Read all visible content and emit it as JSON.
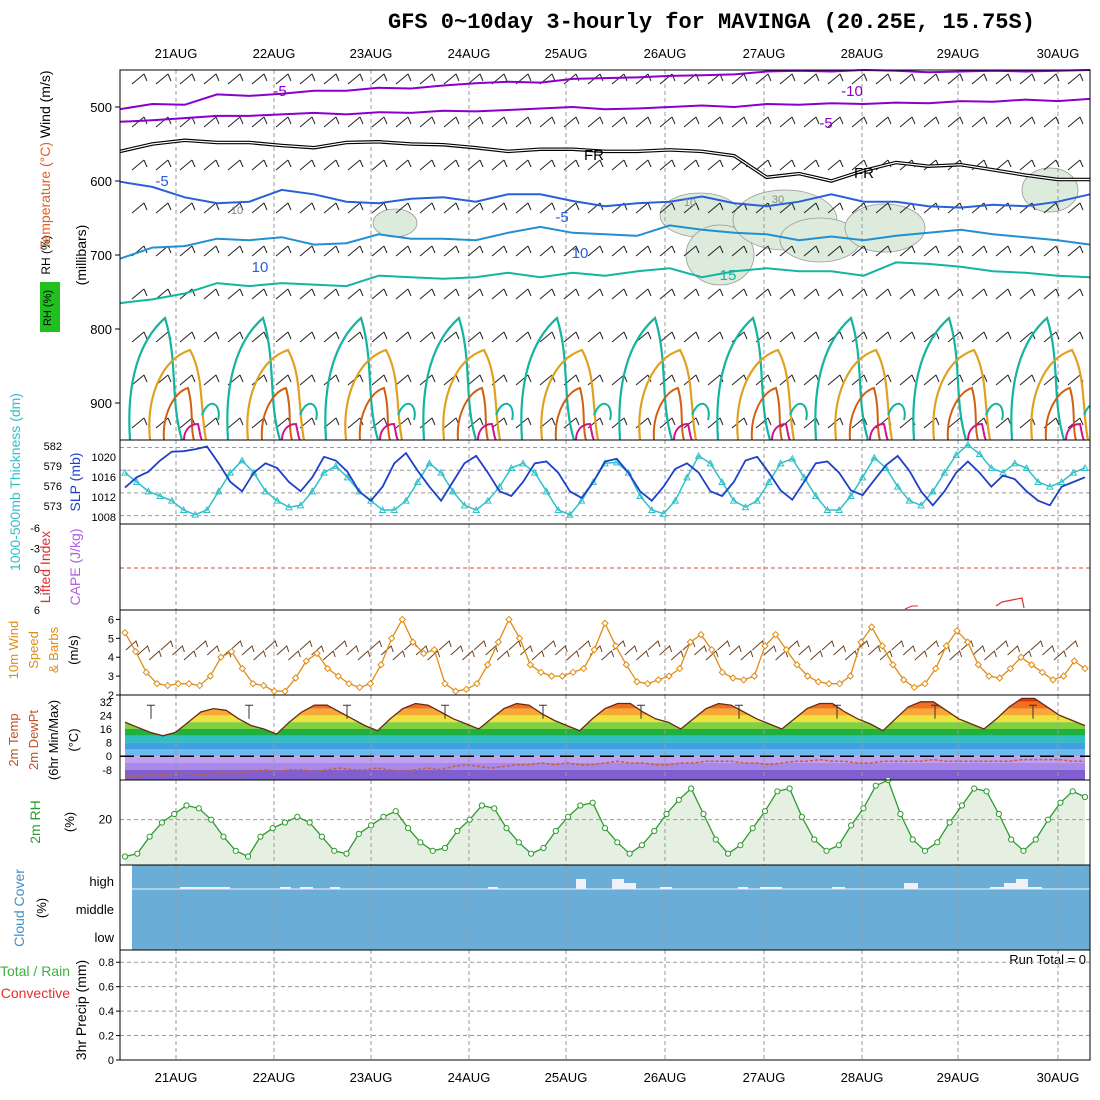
{
  "title": "GFS 0~10day 3-hourly for MAVINGA (20.25E, 15.75S)",
  "run_total_label": "Run Total = 0",
  "colors": {
    "purple": "#8a00c8",
    "blue": "#2860d8",
    "teal": "#14b4a0",
    "orange": "#e0a020",
    "dark_orange": "#d06010",
    "magenta": "#d0148c",
    "slp_line": "#1e40c8",
    "thickness_line": "#30c0c8",
    "wind_speed": "#e08c14",
    "rh_line": "#2c9c2c",
    "cloud_bg": "#6aaed8",
    "cape_zero": "#e04040"
  },
  "chart_data": [
    {
      "panel": "upper_air",
      "type": "contour",
      "x_dates": [
        "21AUG",
        "22AUG",
        "23AUG",
        "24AUG",
        "25AUG",
        "26AUG",
        "27AUG",
        "28AUG",
        "29AUG",
        "30AUG"
      ],
      "ylabel_parts": [
        "RH (%)",
        "Temperature (°C)",
        "Wind (m/s)"
      ],
      "ylabel_right": "(millibars)",
      "yticks": [
        500,
        600,
        700,
        800,
        900
      ],
      "ylim": [
        450,
        950
      ],
      "contour_labels": [
        "-5",
        "-10",
        "-5",
        "FR",
        "FR",
        "-5",
        "-5",
        "10",
        "10",
        "15",
        "10",
        "10",
        "30"
      ],
      "temperature_contours": [
        {
          "label": "-10",
          "levels": [
            503,
            496,
            497,
            483,
            485,
            482,
            478,
            478,
            474,
            475,
            471,
            468,
            466,
            467,
            462,
            461,
            460,
            458,
            457,
            456,
            452,
            451,
            452,
            450,
            451,
            453,
            452,
            451,
            452,
            451,
            450
          ]
        },
        {
          "label": "-5",
          "levels": [
            520,
            518,
            515,
            512,
            512,
            510,
            508,
            510,
            507,
            508,
            505,
            506,
            504,
            502,
            500,
            503,
            502,
            500,
            498,
            500,
            496,
            497,
            495,
            496,
            494,
            495,
            492,
            493,
            490,
            492,
            489
          ]
        },
        {
          "label": "FR",
          "levels": [
            560,
            550,
            545,
            548,
            548,
            552,
            555,
            548,
            547,
            550,
            551,
            555,
            560,
            557,
            557,
            560,
            560,
            558,
            560,
            566,
            595,
            590,
            600,
            586,
            575,
            580,
            578,
            585,
            592,
            598,
            598
          ]
        },
        {
          "label": "-5",
          "levels": [
            601,
            608,
            622,
            630,
            628,
            612,
            618,
            628,
            630,
            624,
            622,
            628,
            618,
            618,
            627,
            634,
            630,
            628,
            621,
            630,
            634,
            628,
            618,
            628,
            628,
            634,
            636,
            632,
            634,
            628,
            618
          ]
        },
        {
          "label": "10",
          "levels": [
            705,
            690,
            688,
            678,
            680,
            676,
            686,
            684,
            672,
            678,
            678,
            680,
            670,
            662,
            670,
            672,
            674,
            660,
            666,
            670,
            672,
            680,
            675,
            680,
            674,
            670,
            666,
            672,
            676,
            680,
            686
          ]
        },
        {
          "label": "15",
          "levels": [
            765,
            760,
            752,
            738,
            742,
            738,
            740,
            742,
            728,
            730,
            732,
            730,
            724,
            730,
            724,
            728,
            722,
            718,
            730,
            722,
            718,
            722,
            722,
            728,
            710,
            712,
            716,
            722,
            724,
            728,
            730
          ]
        }
      ]
    },
    {
      "panel": "slp_thickness",
      "type": "line",
      "ylabel_left": "1000-500mb Thickness (dm)",
      "ylabel_right": "SLP (mb)",
      "thickness_ticks": [
        582,
        579,
        576,
        573
      ],
      "slp_ticks": [
        1020,
        1016,
        1012,
        1008
      ],
      "series": [
        {
          "name": "SLP",
          "values": [
            1012.8,
            1015.0,
            1016.2,
            1018.6,
            1020.5,
            1020.6,
            1021.0,
            1021.6,
            1018.0,
            1014.0,
            1012.0,
            1016.0,
            1018.0,
            1017.0,
            1014.0,
            1012.0,
            1015.0,
            1019.4,
            1018.6,
            1016.2,
            1012.0,
            1010.0,
            1013.0,
            1018.0,
            1020.2,
            1016.4,
            1013.0,
            1010.0,
            1014.0,
            1018.0,
            1019.6,
            1016.0,
            1012.0,
            1011.0,
            1014.0,
            1018.0,
            1018.4,
            1016.0,
            1012.0,
            1010.6,
            1014.0,
            1018.4,
            1019.0,
            1016.0,
            1012.0,
            1010.0,
            1013.0,
            1016.8,
            1018.0,
            1016.0,
            1012.0,
            1011.0,
            1014.0,
            1018.6,
            1019.4,
            1016.0,
            1012.2,
            1010.2,
            1014.0,
            1018.0,
            1018.4,
            1016.0,
            1012.2,
            1011.2,
            1014.4,
            1017.6,
            1019.6,
            1016.4,
            1012.0,
            1009.0,
            1012.0,
            1016.0,
            1018.4,
            1016.0,
            1013.0,
            1015.4,
            1014.6,
            1012.0,
            1010.0,
            1009.0,
            1013.0,
            1014.0,
            1015.0
          ]
        },
        {
          "name": "Thickness",
          "values": [
            1016.0,
            1014.0,
            1012.0,
            1011.0,
            1010.0,
            1008.0,
            1007.0,
            1008.0,
            1012.0,
            1016.0,
            1018.6,
            1016.0,
            1012.0,
            1010.0,
            1008.6,
            1009.0,
            1012.0,
            1016.0,
            1017.4,
            1015.0,
            1012.0,
            1010.0,
            1008.0,
            1008.0,
            1010.0,
            1014.0,
            1018.0,
            1016.0,
            1012.0,
            1009.0,
            1008.0,
            1010.0,
            1013.0,
            1017.0,
            1018.0,
            1016.0,
            1012.0,
            1008.0,
            1007.0,
            1010.0,
            1014.0,
            1018.0,
            1018.2,
            1016.0,
            1011.0,
            1008.0,
            1007.2,
            1010.0,
            1015.0,
            1019.6,
            1018.0,
            1014.0,
            1010.0,
            1008.6,
            1010.0,
            1014.0,
            1018.0,
            1019.0,
            1015.0,
            1011.0,
            1008.0,
            1008.0,
            1011.0,
            1015.0,
            1019.2,
            1017.0,
            1013.0,
            1010.0,
            1009.0,
            1012.0,
            1016.0,
            1019.8,
            1022.0,
            1020.0,
            1017.0,
            1016.0,
            1018.0,
            1017.0,
            1014.0,
            1013.0,
            1014.0,
            1016.0,
            1017.0
          ]
        }
      ]
    },
    {
      "panel": "cape_li",
      "type": "line",
      "ylabel_left": "Lifted Index",
      "ylabel_right": "CAPE (J/kg)",
      "li_ticks": [
        "-6",
        "-3",
        "0",
        "3",
        "6"
      ]
    },
    {
      "panel": "wind10m",
      "type": "line",
      "ylabel": [
        "10m Wind",
        "Speed",
        "& Barbs",
        "(m/s)"
      ],
      "yticks": [
        2,
        3,
        4,
        5,
        6
      ],
      "ylim": [
        2,
        6.5
      ],
      "series": [
        {
          "name": "10m Wind Speed",
          "values": [
            5.3,
            4.3,
            3.2,
            2.6,
            2.5,
            2.6,
            2.6,
            2.5,
            3.0,
            4.0,
            4.3,
            3.4,
            2.6,
            2.5,
            2.2,
            2.2,
            2.9,
            3.8,
            4.2,
            3.4,
            3.0,
            2.6,
            2.4,
            2.6,
            3.6,
            5.0,
            6.0,
            4.8,
            4.2,
            4.4,
            2.6,
            2.2,
            2.3,
            2.6,
            3.6,
            4.8,
            6.0,
            5.0,
            3.6,
            3.2,
            3.0,
            3.0,
            3.2,
            3.4,
            4.4,
            5.8,
            4.6,
            3.6,
            2.7,
            2.6,
            2.8,
            3.0,
            3.4,
            4.8,
            5.2,
            4.4,
            3.2,
            2.9,
            2.8,
            3.0,
            4.6,
            5.2,
            4.4,
            3.6,
            3.0,
            2.7,
            2.6,
            2.6,
            3.0,
            4.8,
            5.6,
            4.6,
            3.6,
            2.8,
            2.4,
            2.6,
            3.4,
            4.6,
            5.4,
            4.8,
            3.6,
            3.0,
            2.9,
            3.4,
            4.0,
            3.6,
            3.2,
            2.8,
            3.0,
            3.8,
            3.4
          ]
        }
      ]
    },
    {
      "panel": "temp_dewpt",
      "type": "area",
      "ylabel": [
        "2m Temp",
        "2m DewPt",
        "(6hr Min/Max)",
        "(°C)"
      ],
      "yticks": [
        32,
        24,
        16,
        8,
        0,
        -8
      ],
      "ylim": [
        -14,
        36
      ],
      "series": [
        {
          "name": "2m Temp",
          "values": [
            20,
            17,
            14,
            12,
            14,
            20,
            26,
            28,
            27,
            22,
            18,
            16,
            13,
            20,
            26,
            30,
            30,
            26,
            22,
            18,
            15,
            22,
            28,
            31,
            30,
            26,
            22,
            19,
            16,
            22,
            28,
            31,
            30,
            25,
            21,
            18,
            15,
            22,
            28,
            31,
            31,
            26,
            22,
            20,
            16,
            22,
            28,
            31,
            30,
            26,
            22,
            19,
            16,
            22,
            28,
            31,
            31,
            26,
            22,
            19,
            15,
            22,
            29,
            32,
            32,
            27,
            22,
            19,
            16,
            22,
            29,
            34,
            34,
            29,
            24,
            21,
            18
          ]
        },
        {
          "name": "2m DewPt",
          "values": [
            -12,
            -12,
            -11,
            -11,
            -10,
            -10,
            -11,
            -10,
            -9,
            -10,
            -9,
            -8,
            -9,
            -8,
            -8,
            -9,
            -8,
            -7,
            -8,
            -8,
            -7,
            -8,
            -9,
            -8,
            -7,
            -8,
            -6,
            -5,
            -6,
            -7,
            -6,
            -5,
            -5,
            -4,
            -5,
            -4,
            -5,
            -5,
            -4,
            -3,
            -4,
            -4,
            -5,
            -5,
            -4,
            -4,
            -3,
            -3,
            -3,
            -4,
            -4,
            -5,
            -4,
            -3,
            -3,
            -2,
            -3,
            -3,
            -4,
            -4,
            -3,
            -3,
            -3,
            -3,
            -2,
            -3,
            -3,
            -3,
            -3,
            -3,
            -3,
            -2,
            -2,
            -2,
            -2,
            -3,
            -3
          ]
        }
      ]
    },
    {
      "panel": "rh2m",
      "type": "area",
      "ylabel": [
        "2m RH",
        "(%)"
      ],
      "yticks": [
        20
      ],
      "ylim": [
        4,
        34
      ],
      "series": [
        {
          "name": "2m RH",
          "values": [
            7,
            8,
            14,
            19,
            22,
            25,
            24,
            20,
            14,
            9,
            7,
            14,
            17,
            19,
            21,
            19,
            14,
            9,
            8,
            15,
            18,
            21,
            23,
            17,
            12,
            9,
            10,
            16,
            20,
            25,
            24,
            17,
            12,
            8,
            10,
            16,
            21,
            25,
            26,
            17,
            12,
            8,
            11,
            16,
            22,
            27,
            31,
            22,
            13,
            8,
            11,
            17,
            23,
            30,
            31,
            21,
            13,
            9,
            11,
            18,
            24,
            32,
            34,
            22,
            13,
            9,
            12,
            19,
            25,
            31,
            30,
            22,
            13,
            9,
            13,
            20,
            26,
            30,
            28
          ]
        }
      ]
    },
    {
      "panel": "cloud",
      "type": "heatmap",
      "ylabel": [
        "Cloud Cover",
        "(%)"
      ],
      "yticks": [
        "high",
        "middle",
        "low"
      ],
      "high_cloud_bins": [
        0,
        0,
        0,
        0,
        0,
        0,
        0,
        0,
        0,
        0,
        0,
        0,
        0,
        0,
        0,
        0,
        0,
        0,
        0,
        0,
        0,
        0,
        0,
        0,
        0,
        0,
        0,
        0,
        0,
        0,
        0,
        0,
        0,
        0,
        0,
        0,
        0,
        0,
        0,
        0,
        0,
        0,
        0,
        0,
        0,
        0,
        0,
        0,
        0,
        0,
        0,
        0,
        0,
        0,
        0,
        0,
        0,
        0,
        0,
        0,
        0,
        0,
        0,
        0,
        0,
        0,
        0,
        0,
        0,
        0,
        0,
        0,
        0,
        0,
        0,
        0,
        0,
        0,
        0,
        0,
        0,
        0,
        0,
        0,
        0,
        0,
        0,
        0,
        0,
        0
      ]
    },
    {
      "panel": "precip",
      "type": "bar",
      "ylabel_left": [
        "Total / Rain",
        "Convective"
      ],
      "ylabel_right": "3hr Precip (mm)",
      "yticks": [
        "0",
        "0.2",
        "0.4",
        "0.6",
        "0.8"
      ],
      "ylim": [
        0,
        0.9
      ],
      "values": []
    }
  ]
}
